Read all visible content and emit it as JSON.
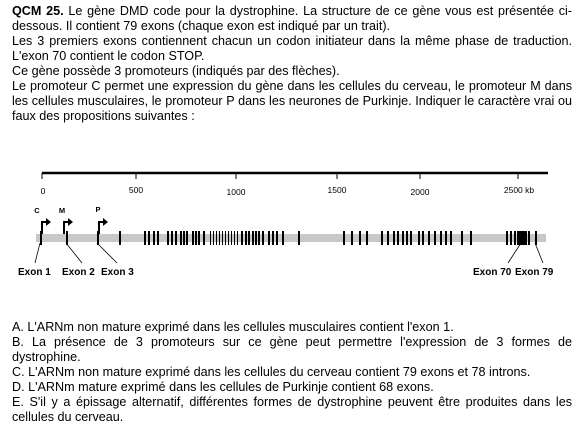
{
  "question": {
    "label": "QCM 25.",
    "intro_lines": [
      "Le gène DMD code pour la dystrophine. La structure de ce gène vous est présentée ci-dessous. Il contient 79 exons (chaque exon est indiqué par un trait).",
      "Les 3 premiers exons contiennent chacun un codon initiateur dans la même phase de traduction. L'exon 70 contient le codon STOP.",
      "Ce gène possède 3 promoteurs (indiqués par des flèches).",
      "Le promoteur C permet une expression du gène dans les cellules du cerveau, le promoteur M dans les cellules musculaires, le promoteur P dans les neurones de Purkinje. Indiquer le caractère vrai ou faux des propositions suivantes :"
    ]
  },
  "figure": {
    "scale_labels": [
      "0",
      "500",
      "1000",
      "1500",
      "2000",
      "2500 kb"
    ],
    "promoters": [
      "C",
      "M",
      "P"
    ],
    "exon_labels": [
      "Exon 1",
      "Exon 2",
      "Exon 3",
      "Exon 70",
      "Exon 79"
    ]
  },
  "options": [
    "A. L'ARNm non mature exprimé dans les cellules musculaires contient l'exon 1.",
    "B. La présence de 3 promoteurs sur ce gène peut permettre l'expression de 3 formes de dystrophine.",
    "C. L'ARNm non mature exprimé dans les cellules du cerveau contient 79 exons et 78 introns.",
    "D. L'ARNm mature exprimé dans les cellules de Purkinje contient 68 exons.",
    "E. S'il y a épissage alternatif, différentes formes de dystrophine peuvent être produites dans les cellules du cerveau."
  ]
}
